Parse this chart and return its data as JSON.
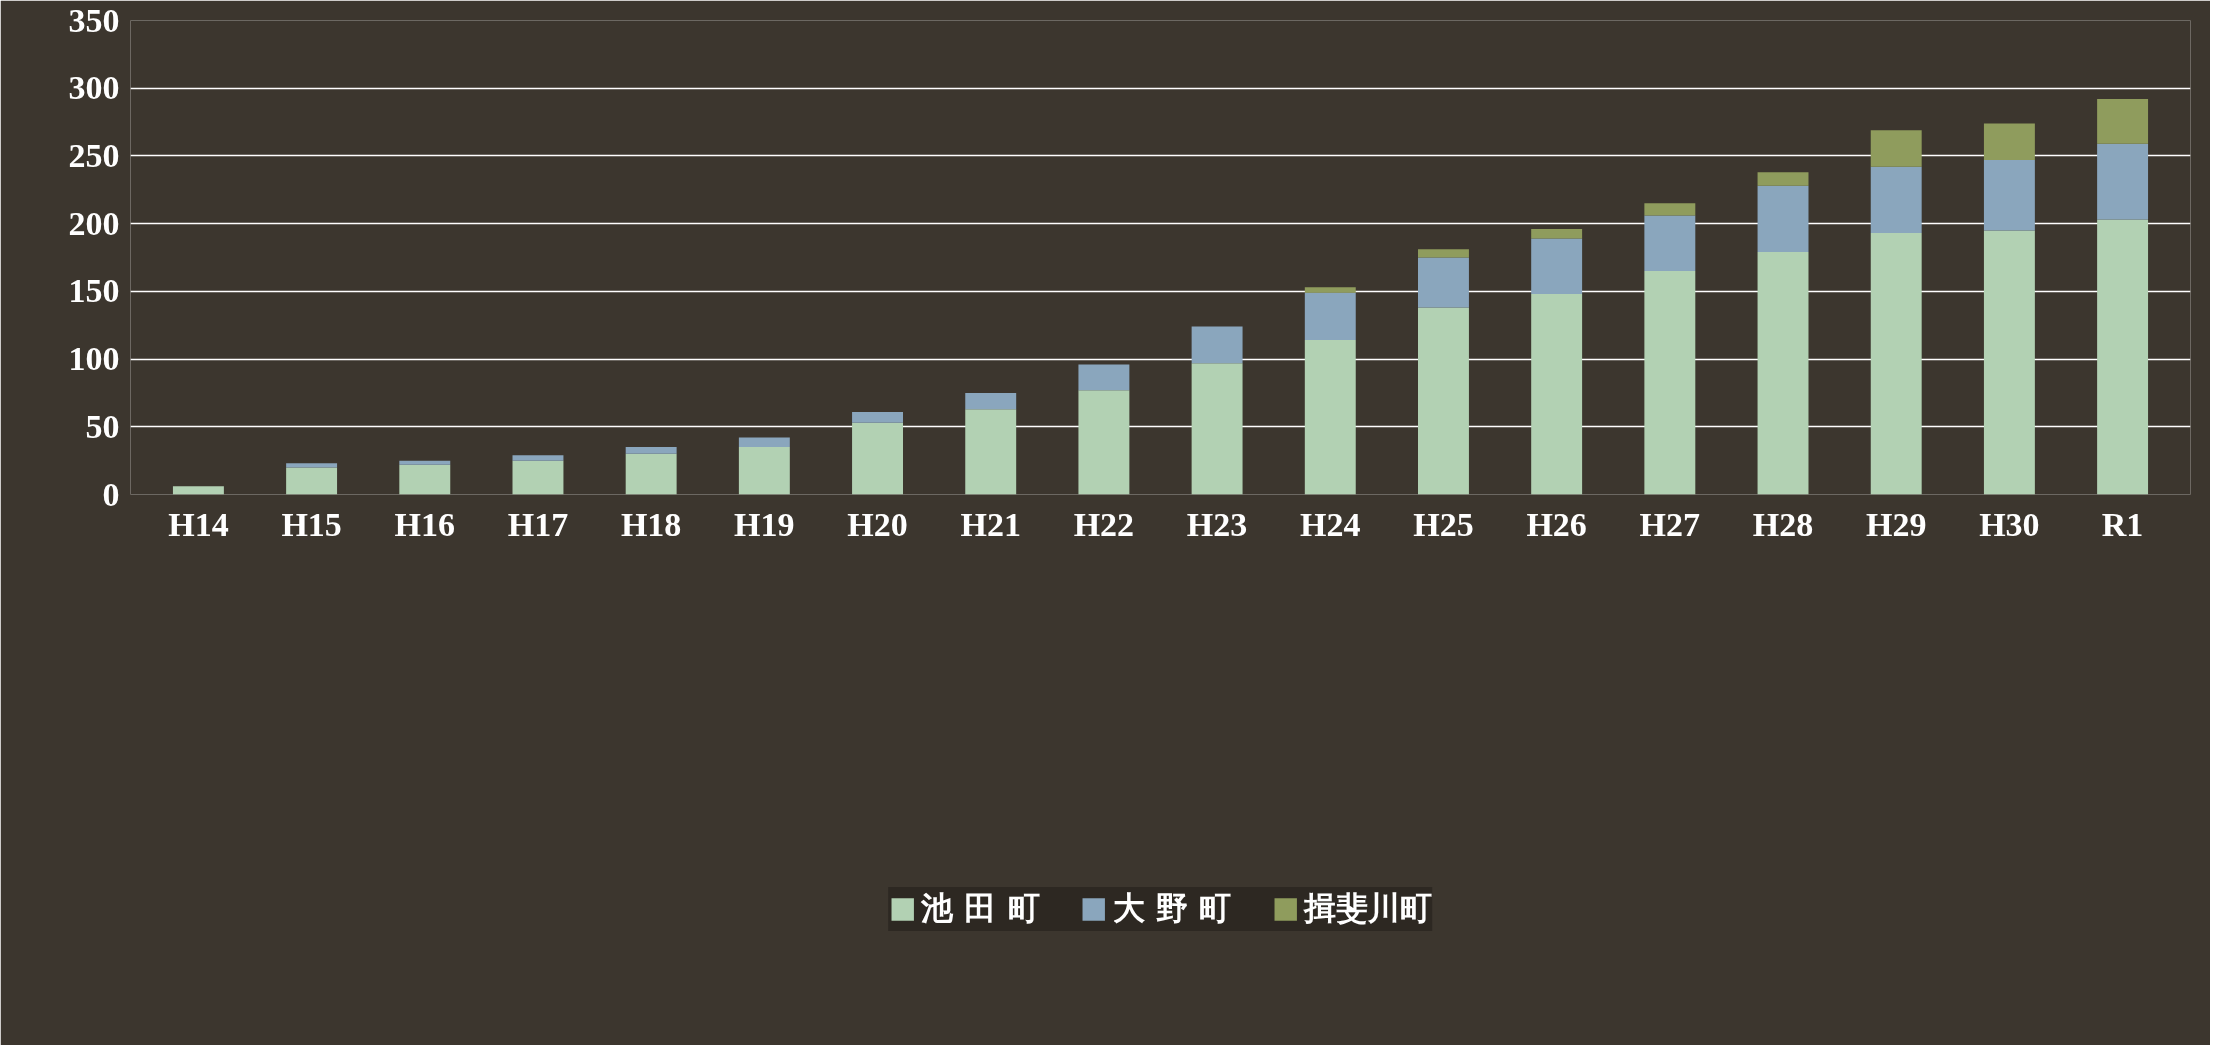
{
  "chart_data": {
    "type": "bar",
    "stacked": true,
    "categories": [
      "H14",
      "H15",
      "H16",
      "H17",
      "H18",
      "H19",
      "H20",
      "H21",
      "H22",
      "H23",
      "H24",
      "H25",
      "H26",
      "H27",
      "H28",
      "H29",
      "H30",
      "R1"
    ],
    "series": [
      {
        "name": "池 田 町",
        "color": "#b2d1b3",
        "values": [
          6,
          20,
          22,
          25,
          30,
          35,
          53,
          63,
          77,
          97,
          114,
          138,
          148,
          165,
          179,
          193,
          195,
          203
        ]
      },
      {
        "name": "大 野 町",
        "color": "#8aa6bd",
        "values": [
          null,
          3,
          3,
          4,
          5,
          7,
          8,
          12,
          19,
          27,
          35,
          37,
          41,
          41,
          49,
          49,
          52,
          56
        ]
      },
      {
        "name": "揖斐川町",
        "color": "#8f9c5d",
        "values": [
          null,
          null,
          null,
          null,
          null,
          null,
          null,
          null,
          null,
          null,
          4,
          6,
          7,
          9,
          10,
          27,
          27,
          33
        ]
      }
    ],
    "ylim": [
      0,
      350
    ],
    "yticks": [
      0,
      50,
      100,
      150,
      200,
      250,
      300,
      350
    ],
    "grid": "y",
    "legend": "bottom"
  }
}
